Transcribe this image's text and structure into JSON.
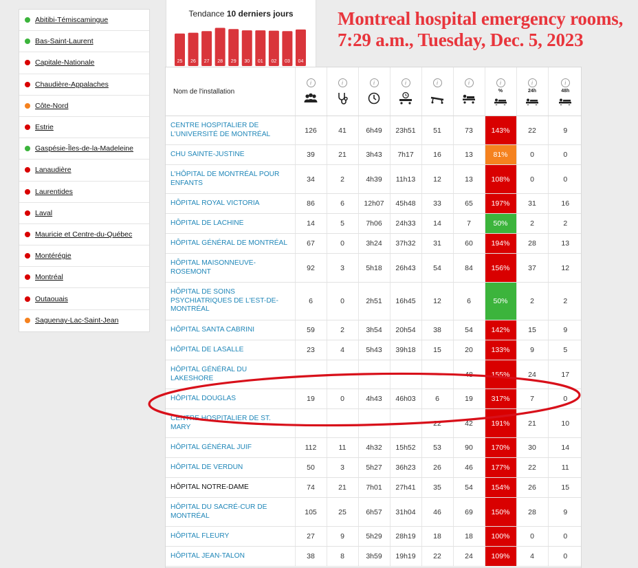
{
  "headline": "Montreal hospital emergency rooms, 7:29 a.m., Tuesday,  Dec. 5, 2023",
  "colors": {
    "red": "#d90000",
    "orange": "#f5821f",
    "green": "#3cb43c",
    "link": "#1f86b8",
    "headline": "#e8353c"
  },
  "sidebar": {
    "items": [
      {
        "label": "Abitibi-Témiscamingue",
        "status": "green"
      },
      {
        "label": "Bas-Saint-Laurent",
        "status": "green"
      },
      {
        "label": "Capitale-Nationale",
        "status": "red"
      },
      {
        "label": "Chaudière-Appalaches",
        "status": "red"
      },
      {
        "label": "Côte-Nord",
        "status": "orange"
      },
      {
        "label": "Estrie",
        "status": "red"
      },
      {
        "label": "Gaspésie-Îles-de-la-Madeleine",
        "status": "green"
      },
      {
        "label": "Lanaudière",
        "status": "red"
      },
      {
        "label": "Laurentides",
        "status": "red"
      },
      {
        "label": "Laval",
        "status": "red"
      },
      {
        "label": "Mauricie et Centre-du-Québec",
        "status": "red"
      },
      {
        "label": "Montérégie",
        "status": "red"
      },
      {
        "label": "Montréal",
        "status": "red"
      },
      {
        "label": "Outaouais",
        "status": "red"
      },
      {
        "label": "Saguenay-Lac-Saint-Jean",
        "status": "orange"
      }
    ]
  },
  "trend": {
    "title_prefix": "Tendance ",
    "title_bold": "10 derniers jours",
    "chart_data": {
      "type": "bar",
      "categories": [
        "25",
        "26",
        "27",
        "28",
        "29",
        "30",
        "01",
        "02",
        "03",
        "04"
      ],
      "values": [
        0.8,
        0.82,
        0.86,
        0.94,
        0.91,
        0.88,
        0.88,
        0.87,
        0.86,
        0.9
      ]
    }
  },
  "table": {
    "name_header": "Nom de l'installation",
    "info_symbol": "i",
    "columns": [
      {
        "icon": "people-icon"
      },
      {
        "icon": "stethoscope-icon"
      },
      {
        "icon": "clock-icon"
      },
      {
        "icon": "stretcher-clock-icon"
      },
      {
        "icon": "stretcher-icon"
      },
      {
        "icon": "stretcher-occupied-icon"
      },
      {
        "icon": "percent-stretcher-icon",
        "label": "%"
      },
      {
        "icon": "stretcher-24h-icon",
        "label": "24h"
      },
      {
        "icon": "stretcher-48h-icon",
        "label": "48h"
      }
    ],
    "rows": [
      {
        "name": "CENTRE HOSPITALIER DE L'UNIVERSITÉ DE MONTRÉAL",
        "cells": [
          "126",
          "41",
          "6h49",
          "23h51",
          "51",
          "73"
        ],
        "pct": "143%",
        "pct_color": "red",
        "h24": "22",
        "h48": "9",
        "h": 42
      },
      {
        "name": "CHU SAINTE-JUSTINE",
        "cells": [
          "39",
          "21",
          "3h43",
          "7h17",
          "16",
          "13"
        ],
        "pct": "81%",
        "pct_color": "orange",
        "h24": "0",
        "h48": "0",
        "h": 29
      },
      {
        "name": "L'HÔPITAL DE MONTRÉAL POUR ENFANTS",
        "cells": [
          "34",
          "2",
          "4h39",
          "11h13",
          "12",
          "13"
        ],
        "pct": "108%",
        "pct_color": "red",
        "h24": "0",
        "h48": "0",
        "h": 42
      },
      {
        "name": "HÔPITAL ROYAL VICTORIA",
        "cells": [
          "86",
          "6",
          "12h07",
          "45h48",
          "33",
          "65"
        ],
        "pct": "197%",
        "pct_color": "red",
        "h24": "31",
        "h48": "16",
        "h": 29
      },
      {
        "name": "HÔPITAL DE LACHINE",
        "cells": [
          "14",
          "5",
          "7h06",
          "24h33",
          "14",
          "7"
        ],
        "pct": "50%",
        "pct_color": "green",
        "h24": "2",
        "h48": "2",
        "h": 29
      },
      {
        "name": "HÔPITAL GÉNÉRAL DE MONTRÉAL",
        "cells": [
          "67",
          "0",
          "3h24",
          "37h32",
          "31",
          "60"
        ],
        "pct": "194%",
        "pct_color": "red",
        "h24": "28",
        "h48": "13",
        "h": 29
      },
      {
        "name": "HÔPITAL MAISONNEUVE-ROSEMONT",
        "cells": [
          "92",
          "3",
          "5h18",
          "26h43",
          "54",
          "84"
        ],
        "pct": "156%",
        "pct_color": "red",
        "h24": "37",
        "h48": "12",
        "h": 42
      },
      {
        "name": "HÔPITAL DE SOINS PSYCHIATRIQUES DE L'EST-DE-MONTRÉAL",
        "cells": [
          "6",
          "0",
          "2h51",
          "16h45",
          "12",
          "6"
        ],
        "pct": "50%",
        "pct_color": "green",
        "h24": "2",
        "h48": "2",
        "h": 55
      },
      {
        "name": "HÔPITAL SANTA CABRINI",
        "cells": [
          "59",
          "2",
          "3h54",
          "20h54",
          "38",
          "54"
        ],
        "pct": "142%",
        "pct_color": "red",
        "h24": "15",
        "h48": "9",
        "h": 29
      },
      {
        "name": "HÔPITAL DE LASALLE",
        "cells": [
          "23",
          "4",
          "5h43",
          "39h18",
          "15",
          "20"
        ],
        "pct": "133%",
        "pct_color": "red",
        "h24": "9",
        "h48": "5",
        "h": 29
      },
      {
        "name": "HÔPITAL GÉNÉRAL DU LAKESHORE",
        "cells": [
          "",
          "",
          "",
          "",
          "",
          "48"
        ],
        "pct": "155%",
        "pct_color": "red",
        "h24": "24",
        "h48": "17",
        "h": 42
      },
      {
        "name": "HÔPITAL DOUGLAS",
        "cells": [
          "19",
          "0",
          "4h43",
          "46h03",
          "6",
          "19"
        ],
        "pct": "317%",
        "pct_color": "red",
        "h24": "7",
        "h48": "0",
        "h": 29
      },
      {
        "name": "CENTRE HOSPITALIER DE ST. MARY",
        "cells": [
          "",
          "",
          "",
          "",
          "22",
          "42"
        ],
        "pct": "191%",
        "pct_color": "red",
        "h24": "21",
        "h48": "10",
        "h": 42
      },
      {
        "name": "HÔPITAL GÉNÉRAL JUIF",
        "cells": [
          "112",
          "11",
          "4h32",
          "15h52",
          "53",
          "90"
        ],
        "pct": "170%",
        "pct_color": "red",
        "h24": "30",
        "h48": "14",
        "h": 29
      },
      {
        "name": "HÔPITAL DE VERDUN",
        "cells": [
          "50",
          "3",
          "5h27",
          "36h23",
          "26",
          "46"
        ],
        "pct": "177%",
        "pct_color": "red",
        "h24": "22",
        "h48": "11",
        "h": 29
      },
      {
        "name": "HÔPITAL NOTRE-DAME",
        "cells": [
          "74",
          "21",
          "7h01",
          "27h41",
          "35",
          "54"
        ],
        "pct": "154%",
        "pct_color": "red",
        "h24": "26",
        "h48": "15",
        "h": 29,
        "black": true
      },
      {
        "name": "HÔPITAL DU SACRÉ-CUR DE MONTRÉAL",
        "cells": [
          "105",
          "25",
          "6h57",
          "31h04",
          "46",
          "69"
        ],
        "pct": "150%",
        "pct_color": "red",
        "h24": "28",
        "h48": "9",
        "h": 42
      },
      {
        "name": "HÔPITAL FLEURY",
        "cells": [
          "27",
          "9",
          "5h29",
          "28h19",
          "18",
          "18"
        ],
        "pct": "100%",
        "pct_color": "red",
        "h24": "0",
        "h48": "0",
        "h": 29
      },
      {
        "name": "HÔPITAL JEAN-TALON",
        "cells": [
          "38",
          "8",
          "3h59",
          "19h19",
          "22",
          "24"
        ],
        "pct": "109%",
        "pct_color": "red",
        "h24": "4",
        "h48": "0",
        "h": 29
      }
    ]
  }
}
